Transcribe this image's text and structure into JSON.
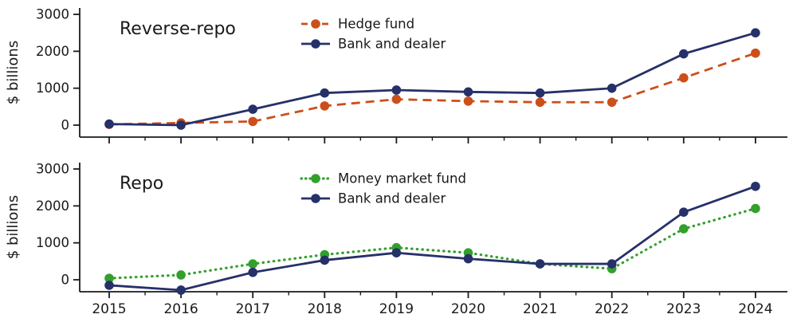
{
  "figure": {
    "background": "#ffffff",
    "text_color": "#1a1a1a"
  },
  "chart_data": [
    {
      "type": "line",
      "title": "Reverse-repo",
      "ylabel": "$ billions",
      "x": [
        2015,
        2016,
        2017,
        2018,
        2019,
        2020,
        2021,
        2022,
        2023,
        2024
      ],
      "ylim": [
        -360,
        3180
      ],
      "yticks": [
        0,
        1000,
        2000,
        3000
      ],
      "grid": false,
      "legend_position": "upper-center-inside",
      "series": [
        {
          "name": "Hedge fund",
          "color": "#cc4f1b",
          "line_style": "dashed",
          "marker": "circle",
          "values": [
            20,
            60,
            100,
            520,
            700,
            650,
            620,
            620,
            1280,
            1950
          ]
        },
        {
          "name": "Bank and dealer",
          "color": "#263069",
          "line_style": "solid",
          "marker": "circle",
          "values": [
            30,
            0,
            430,
            870,
            950,
            900,
            870,
            1000,
            1930,
            2500
          ]
        }
      ]
    },
    {
      "type": "line",
      "title": "Repo",
      "ylabel": "$ billions",
      "x": [
        2015,
        2016,
        2017,
        2018,
        2019,
        2020,
        2021,
        2022,
        2023,
        2024
      ],
      "ylim": [
        -400,
        3180
      ],
      "yticks": [
        0,
        1000,
        2000,
        3000
      ],
      "grid": false,
      "legend_position": "upper-center-inside",
      "series": [
        {
          "name": "Money market fund",
          "color": "#33a02c",
          "line_style": "dotted",
          "marker": "circle",
          "values": [
            40,
            130,
            430,
            680,
            870,
            730,
            430,
            300,
            1380,
            1930
          ]
        },
        {
          "name": "Bank and dealer",
          "color": "#263069",
          "line_style": "solid",
          "marker": "circle",
          "values": [
            -150,
            -280,
            200,
            530,
            730,
            570,
            430,
            430,
            1830,
            2530
          ]
        }
      ]
    }
  ]
}
